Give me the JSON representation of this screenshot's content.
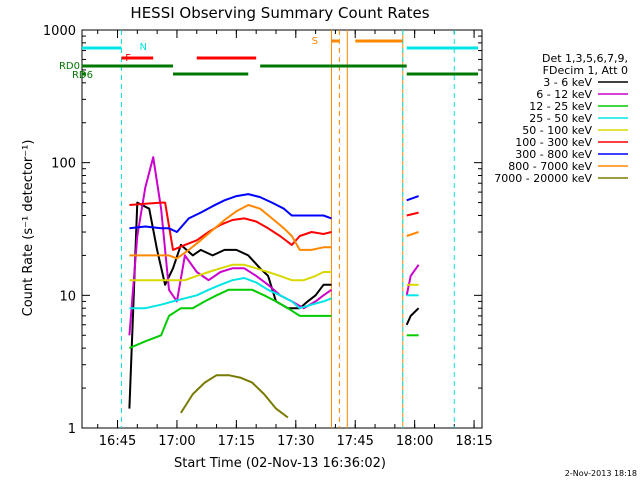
{
  "chart_data": {
    "type": "line",
    "title": "HESSI Observing Summary Count Rates",
    "xlabel": "Start Time (02-Nov-13 16:36:02)",
    "ylabel": "Count Rate (s⁻¹ detector⁻¹)",
    "ylog": true,
    "ylim": [
      1,
      1000
    ],
    "xlim": [
      "16:36:02",
      "18:17:00"
    ],
    "x_ticks": [
      "16:45",
      "17:00",
      "17:15",
      "17:30",
      "17:45",
      "18:00",
      "18:15"
    ],
    "y_ticks": [
      "1",
      "10",
      "100",
      "1000"
    ],
    "legend_header": [
      "Det 1,3,5,6,7,9,",
      "FDecim 1, Att 0"
    ],
    "legend_position": "right",
    "footer_date": "2-Nov-2013 18:18",
    "series": [
      {
        "name": "3 - 6 keV",
        "color": "#000000",
        "points": [
          [
            "16:48",
            1.4
          ],
          [
            "16:50",
            50
          ],
          [
            "16:53",
            45
          ],
          [
            "16:55",
            22
          ],
          [
            "16:57",
            12
          ],
          [
            "16:59",
            16
          ],
          [
            "17:01",
            24
          ],
          [
            "17:04",
            20
          ],
          [
            "17:06",
            22
          ],
          [
            "17:09",
            20
          ],
          [
            "17:12",
            22
          ],
          [
            "17:15",
            22
          ],
          [
            "17:18",
            20
          ],
          [
            "17:21",
            16
          ],
          [
            "17:23",
            14
          ],
          [
            "17:25",
            9
          ],
          [
            "17:28",
            8
          ],
          [
            "17:31",
            8
          ],
          [
            "17:33",
            9
          ],
          [
            "17:35",
            10
          ],
          [
            "17:37",
            12
          ],
          [
            "17:39",
            12
          ],
          [
            "17:58",
            6
          ],
          [
            "17:59",
            7
          ],
          [
            "18:01",
            8
          ]
        ]
      },
      {
        "name": "6 - 12 keV",
        "color": "#cc00cc",
        "points": [
          [
            "16:48",
            5
          ],
          [
            "16:50",
            28
          ],
          [
            "16:52",
            65
          ],
          [
            "16:54",
            110
          ],
          [
            "16:56",
            45
          ],
          [
            "16:58",
            11
          ],
          [
            "17:00",
            9
          ],
          [
            "17:02",
            20
          ],
          [
            "17:05",
            15
          ],
          [
            "17:08",
            13
          ],
          [
            "17:11",
            15
          ],
          [
            "17:14",
            16
          ],
          [
            "17:17",
            16
          ],
          [
            "17:20",
            14
          ],
          [
            "17:23",
            12
          ],
          [
            "17:26",
            10
          ],
          [
            "17:29",
            9
          ],
          [
            "17:32",
            8
          ],
          [
            "17:35",
            9
          ],
          [
            "17:37",
            10
          ],
          [
            "17:39",
            11
          ],
          [
            "17:58",
            10
          ],
          [
            "17:59",
            14
          ],
          [
            "18:01",
            17
          ]
        ]
      },
      {
        "name": "12 - 25 keV",
        "color": "#00cc00",
        "points": [
          [
            "16:48",
            4
          ],
          [
            "16:52",
            4.5
          ],
          [
            "16:56",
            5
          ],
          [
            "16:58",
            7
          ],
          [
            "17:01",
            8
          ],
          [
            "17:04",
            8
          ],
          [
            "17:07",
            9
          ],
          [
            "17:10",
            10
          ],
          [
            "17:13",
            11
          ],
          [
            "17:16",
            11
          ],
          [
            "17:19",
            11
          ],
          [
            "17:22",
            10
          ],
          [
            "17:25",
            9
          ],
          [
            "17:28",
            8
          ],
          [
            "17:31",
            7
          ],
          [
            "17:34",
            7
          ],
          [
            "17:37",
            7
          ],
          [
            "17:39",
            7
          ],
          [
            "17:58",
            5
          ],
          [
            "18:01",
            5
          ]
        ]
      },
      {
        "name": "25 - 50 keV",
        "color": "#00e5e5",
        "points": [
          [
            "16:48",
            8
          ],
          [
            "16:52",
            8
          ],
          [
            "16:56",
            8.5
          ],
          [
            "16:59",
            9
          ],
          [
            "17:02",
            9.5
          ],
          [
            "17:05",
            10
          ],
          [
            "17:08",
            11
          ],
          [
            "17:11",
            12
          ],
          [
            "17:14",
            13
          ],
          [
            "17:17",
            13.5
          ],
          [
            "17:20",
            12.5
          ],
          [
            "17:23",
            11
          ],
          [
            "17:26",
            10
          ],
          [
            "17:29",
            9
          ],
          [
            "17:31",
            8
          ],
          [
            "17:34",
            8.5
          ],
          [
            "17:37",
            9
          ],
          [
            "17:39",
            9.5
          ],
          [
            "17:58",
            10
          ],
          [
            "18:01",
            10
          ]
        ]
      },
      {
        "name": "50 - 100 keV",
        "color": "#d8d800",
        "points": [
          [
            "16:48",
            13
          ],
          [
            "16:52",
            13
          ],
          [
            "16:56",
            13
          ],
          [
            "16:59",
            13
          ],
          [
            "17:02",
            13
          ],
          [
            "17:05",
            14
          ],
          [
            "17:08",
            15
          ],
          [
            "17:11",
            16
          ],
          [
            "17:14",
            17
          ],
          [
            "17:17",
            17
          ],
          [
            "17:20",
            16
          ],
          [
            "17:23",
            15
          ],
          [
            "17:26",
            14
          ],
          [
            "17:29",
            13
          ],
          [
            "17:32",
            13
          ],
          [
            "17:35",
            14
          ],
          [
            "17:37",
            15
          ],
          [
            "17:39",
            15
          ],
          [
            "17:58",
            12
          ],
          [
            "18:01",
            12
          ]
        ]
      },
      {
        "name": "100 - 300 keV",
        "color": "#ff0000",
        "points": [
          [
            "16:48",
            48
          ],
          [
            "16:52",
            49
          ],
          [
            "16:56",
            50
          ],
          [
            "16:57",
            50
          ],
          [
            "16:59",
            22
          ],
          [
            "17:02",
            24
          ],
          [
            "17:05",
            26
          ],
          [
            "17:08",
            30
          ],
          [
            "17:11",
            34
          ],
          [
            "17:14",
            37
          ],
          [
            "17:17",
            38
          ],
          [
            "17:20",
            36
          ],
          [
            "17:23",
            32
          ],
          [
            "17:26",
            28
          ],
          [
            "17:29",
            24
          ],
          [
            "17:31",
            28
          ],
          [
            "17:34",
            30
          ],
          [
            "17:37",
            29
          ],
          [
            "17:39",
            30
          ],
          [
            "17:58",
            40
          ],
          [
            "18:01",
            42
          ]
        ]
      },
      {
        "name": "300 - 800 keV",
        "color": "#0000ff",
        "points": [
          [
            "16:48",
            32
          ],
          [
            "16:52",
            33
          ],
          [
            "16:56",
            32
          ],
          [
            "16:58",
            32
          ],
          [
            "17:00",
            30
          ],
          [
            "17:03",
            38
          ],
          [
            "17:06",
            42
          ],
          [
            "17:09",
            47
          ],
          [
            "17:12",
            52
          ],
          [
            "17:15",
            56
          ],
          [
            "17:18",
            58
          ],
          [
            "17:21",
            55
          ],
          [
            "17:24",
            50
          ],
          [
            "17:27",
            45
          ],
          [
            "17:29",
            40
          ],
          [
            "17:31",
            40
          ],
          [
            "17:34",
            40
          ],
          [
            "17:37",
            40
          ],
          [
            "17:39",
            38
          ],
          [
            "17:58",
            52
          ],
          [
            "18:01",
            56
          ]
        ]
      },
      {
        "name": "800 - 7000 keV",
        "color": "#ff8800",
        "points": [
          [
            "16:48",
            20
          ],
          [
            "16:52",
            20
          ],
          [
            "16:56",
            20
          ],
          [
            "16:58",
            20
          ],
          [
            "17:00",
            19
          ],
          [
            "17:03",
            22
          ],
          [
            "17:06",
            26
          ],
          [
            "17:09",
            31
          ],
          [
            "17:12",
            37
          ],
          [
            "17:15",
            43
          ],
          [
            "17:18",
            48
          ],
          [
            "17:21",
            45
          ],
          [
            "17:24",
            38
          ],
          [
            "17:27",
            32
          ],
          [
            "17:29",
            28
          ],
          [
            "17:31",
            22
          ],
          [
            "17:34",
            22
          ],
          [
            "17:37",
            23
          ],
          [
            "17:39",
            23
          ],
          [
            "17:58",
            28
          ],
          [
            "18:01",
            30
          ]
        ]
      },
      {
        "name": "7000 - 20000 keV",
        "color": "#7a7a00",
        "points": [
          [
            "17:01",
            1.3
          ],
          [
            "17:04",
            1.8
          ],
          [
            "17:07",
            2.2
          ],
          [
            "17:10",
            2.5
          ],
          [
            "17:13",
            2.5
          ],
          [
            "17:16",
            2.4
          ],
          [
            "17:19",
            2.2
          ],
          [
            "17:22",
            1.8
          ],
          [
            "17:25",
            1.4
          ],
          [
            "17:28",
            1.2
          ]
        ]
      }
    ],
    "annotations": {
      "labels": [
        {
          "text": "N",
          "color": "#00e5e5"
        },
        {
          "text": "F",
          "color": "#ff0000"
        },
        {
          "text": "S",
          "color": "#ff8800"
        },
        {
          "text": "RD0",
          "color": "#007700"
        },
        {
          "text": "RD6",
          "color": "#007700"
        }
      ],
      "intervals": [
        {
          "kind": "night",
          "color": "#00e5e5",
          "ranges": [
            [
              "16:36",
              "16:46"
            ],
            [
              "17:58",
              "18:16"
            ]
          ]
        },
        {
          "kind": "flare",
          "color": "#ff0000",
          "ranges": [
            [
              "16:46",
              "16:54"
            ],
            [
              "17:05",
              "17:20"
            ]
          ]
        },
        {
          "kind": "saa",
          "color": "#ff8800",
          "ranges": [
            [
              "17:39",
              "17:41"
            ],
            [
              "17:45",
              "17:57"
            ]
          ]
        },
        {
          "kind": "rd0",
          "color": "#007700",
          "ranges": [
            [
              "16:36",
              "16:59"
            ],
            [
              "17:21",
              "17:58"
            ]
          ]
        },
        {
          "kind": "rd6",
          "color": "#007700",
          "ranges": [
            [
              "16:36",
              "16:37"
            ],
            [
              "16:59",
              "17:18"
            ],
            [
              "17:58",
              "18:16"
            ]
          ]
        }
      ],
      "vlines": [
        {
          "time": "16:46",
          "color": "#00e5e5",
          "dashed": true
        },
        {
          "time": "17:39",
          "color": "#ff8800",
          "dashed": false
        },
        {
          "time": "17:41",
          "color": "#ff8800",
          "dashed": true
        },
        {
          "time": "17:43",
          "color": "#ff8800",
          "dashed": false
        },
        {
          "time": "17:57",
          "color": "#ff8800",
          "dashed": false
        },
        {
          "time": "17:57",
          "color": "#00e5e5",
          "dashed": true
        },
        {
          "time": "18:10",
          "color": "#00e5e5",
          "dashed": true
        }
      ]
    }
  }
}
